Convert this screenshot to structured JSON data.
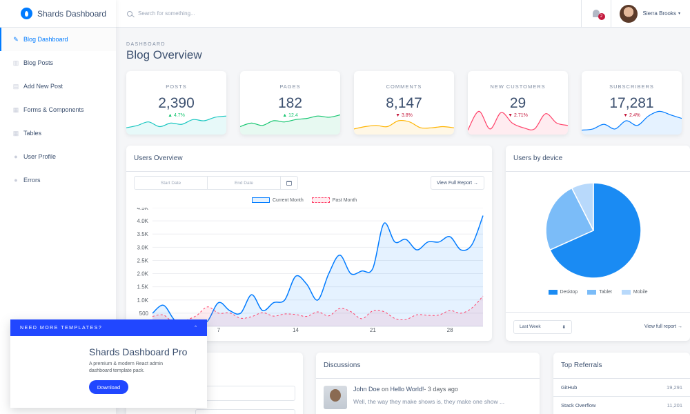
{
  "brand": {
    "name": "Shards Dashboard"
  },
  "sidebar": {
    "items": [
      {
        "label": "Blog Dashboard",
        "icon": "pencil-icon",
        "glyph": "✎",
        "active": true
      },
      {
        "label": "Blog Posts",
        "icon": "columns-icon",
        "glyph": "▥"
      },
      {
        "label": "Add New Post",
        "icon": "note-add-icon",
        "glyph": "▤"
      },
      {
        "label": "Forms & Components",
        "icon": "grid-icon",
        "glyph": "▦"
      },
      {
        "label": "Tables",
        "icon": "table-icon",
        "glyph": "▦"
      },
      {
        "label": "User Profile",
        "icon": "person-icon",
        "glyph": "●"
      },
      {
        "label": "Errors",
        "icon": "error-icon",
        "glyph": "●"
      }
    ]
  },
  "topbar": {
    "search_placeholder": "Search for something...",
    "notifications_count": "2",
    "user_name": "Sierra Brooks"
  },
  "page": {
    "subtitle": "DASHBOARD",
    "title": "Blog Overview"
  },
  "stats": [
    {
      "label": "POSTS",
      "value": "2,390",
      "change": "4.7%",
      "direction": "up",
      "color": "#17c6c0",
      "fill": "rgba(23,198,192,0.1)"
    },
    {
      "label": "PAGES",
      "value": "182",
      "change": "12.4",
      "direction": "up",
      "color": "#17c671",
      "fill": "rgba(23,198,113,0.1)"
    },
    {
      "label": "COMMENTS",
      "value": "8,147",
      "change": "3.8%",
      "direction": "down",
      "color": "#ffb400",
      "fill": "rgba(255,180,0,0.1)"
    },
    {
      "label": "NEW CUSTOMERS",
      "value": "29",
      "change": "2.71%",
      "direction": "down",
      "color": "#ff4169",
      "fill": "rgba(255,65,105,0.1)"
    },
    {
      "label": "SUBSCRIBERS",
      "value": "17,281",
      "change": "2.4%",
      "direction": "down",
      "color": "#007bff",
      "fill": "rgba(0,123,255,0.1)"
    }
  ],
  "users_overview": {
    "title": "Users Overview",
    "start_placeholder": "Start Date",
    "end_placeholder": "End Date",
    "view_report": "View Full Report →"
  },
  "users_by_device": {
    "title": "Users by device",
    "range": "Last Week",
    "full_report": "View full report →"
  },
  "chart_data": [
    {
      "type": "line",
      "series": [
        {
          "name": "Current Month",
          "color": "#007bff",
          "values": [
            500,
            800,
            240,
            50,
            0,
            200,
            900,
            600,
            500,
            1200,
            600,
            900,
            1000,
            1900,
            1600,
            1000,
            2000,
            2700,
            2000,
            2100,
            2200,
            3900,
            3200,
            3300,
            2900,
            3200,
            3200,
            3400,
            2900,
            3100,
            4200
          ]
        },
        {
          "name": "Past Month",
          "color": "#ff4169",
          "values": [
            380,
            430,
            120,
            230,
            410,
            740,
            500,
            510,
            310,
            370,
            520,
            390,
            470,
            450,
            380,
            550,
            400,
            680,
            560,
            290,
            590,
            560,
            300,
            260,
            440,
            420,
            430,
            600,
            500,
            700,
            1150
          ]
        }
      ],
      "x": [
        1,
        2,
        3,
        4,
        5,
        6,
        7,
        8,
        9,
        10,
        11,
        12,
        13,
        14,
        15,
        16,
        17,
        18,
        19,
        20,
        21,
        22,
        23,
        24,
        25,
        26,
        27,
        28,
        29,
        30,
        31
      ],
      "x_tick_labels": [
        "7",
        "14",
        "21",
        "28"
      ],
      "x_ticks": [
        7,
        14,
        21,
        28
      ],
      "y_tick_labels": [
        "500",
        "1.0K",
        "1.5K",
        "2.0K",
        "2.5K",
        "3.0K",
        "3.5K",
        "4.0K",
        "4.5K"
      ],
      "y_ticks": [
        500,
        1000,
        1500,
        2000,
        2500,
        3000,
        3500,
        4000,
        4500
      ],
      "ylim": [
        0,
        4500
      ],
      "grid": true,
      "legend": "top-center"
    },
    {
      "type": "pie",
      "labels": [
        "Desktop",
        "Tablet",
        "Mobile"
      ],
      "values": [
        68.3,
        24.2,
        7.5
      ],
      "colors": [
        "#1a8bf3",
        "#7bbcf8",
        "#b8d9fb"
      ],
      "legend": "bottom"
    }
  ],
  "discussions": {
    "title": "Discussions",
    "items": [
      {
        "author": "John Doe",
        "post": "Hello World!",
        "time": "3 days ago",
        "text": "Well, the way they make shows is, they make one show ..."
      }
    ]
  },
  "top_referrals": {
    "title": "Top Referrals",
    "items": [
      {
        "name": "GitHub",
        "count": "19,291"
      },
      {
        "name": "Stack Overflow",
        "count": "11,201"
      }
    ]
  },
  "promo": {
    "header": "NEED MORE TEMPLATES?",
    "title": "Shards Dashboard Pro",
    "description": "A premium & modern React admin dashboard template pack.",
    "button": "Download"
  }
}
